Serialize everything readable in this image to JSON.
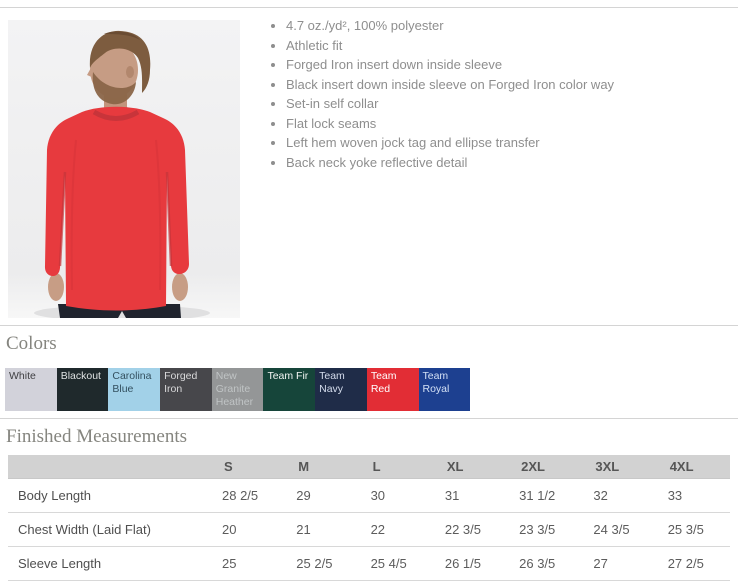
{
  "features": {
    "items": [
      "4.7 oz./yd², 100% polyester",
      "Athletic fit",
      "Forged Iron insert down inside sleeve",
      "Black insert down inside sleeve on Forged Iron color way",
      "Set-in self collar",
      "Flat lock seams",
      "Left hem woven jock tag and ellipse transfer",
      "Back neck yoke reflective detail"
    ]
  },
  "product_image": {
    "description": "Model wearing red long sleeve performance shirt"
  },
  "colors_section": {
    "heading": "Colors",
    "swatches": [
      {
        "label": "White",
        "bg": "#d2d2da",
        "text": "#3f3f42"
      },
      {
        "label": "Blackout",
        "bg": "#1f292c",
        "text": "#dfe2e2"
      },
      {
        "label": "Carolina Blue",
        "bg": "#a2d1e8",
        "text": "#33505f"
      },
      {
        "label": "Forged Iron",
        "bg": "#47474b",
        "text": "#d9d9da"
      },
      {
        "label": "New Granite Heather",
        "bg": "#949697",
        "text": "#c0c4c5"
      },
      {
        "label": "Team Fir",
        "bg": "#16453a",
        "text": "#f2f5f3"
      },
      {
        "label": "Team Navy",
        "bg": "#1f2c48",
        "text": "#d4dcec"
      },
      {
        "label": "Team Red",
        "bg": "#e22d35",
        "text": "#ffffff"
      },
      {
        "label": "Team Royal",
        "bg": "#1d4090",
        "text": "#d3e0f5"
      }
    ]
  },
  "measurements": {
    "heading": "Finished Measurements",
    "columns": [
      "S",
      "M",
      "L",
      "XL",
      "2XL",
      "3XL",
      "4XL"
    ],
    "rows": [
      {
        "label": "Body Length",
        "values": [
          "28 2/5",
          "29",
          "30",
          "31",
          "31 1/2",
          "32",
          "33"
        ]
      },
      {
        "label": "Chest Width (Laid Flat)",
        "values": [
          "20",
          "21",
          "22",
          "22 3/5",
          "23 3/5",
          "24 3/5",
          "25 3/5"
        ]
      },
      {
        "label": "Sleeve Length",
        "values": [
          "25",
          "25 2/5",
          "25 4/5",
          "26 1/5",
          "26 3/5",
          "27",
          "27 2/5"
        ]
      }
    ]
  }
}
